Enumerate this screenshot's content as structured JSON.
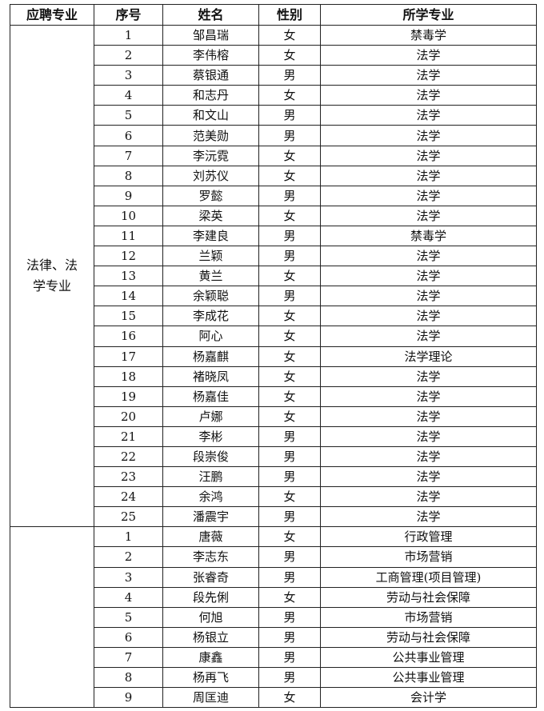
{
  "headers": [
    "应聘专业",
    "序号",
    "姓名",
    "性别",
    "所学专业"
  ],
  "groups": [
    {
      "position": "法律、法学专业",
      "rows": [
        [
          "1",
          "邹昌瑞",
          "女",
          "禁毒学"
        ],
        [
          "2",
          "李伟榕",
          "女",
          "法学"
        ],
        [
          "3",
          "蔡银通",
          "男",
          "法学"
        ],
        [
          "4",
          "和志丹",
          "女",
          "法学"
        ],
        [
          "5",
          "和文山",
          "男",
          "法学"
        ],
        [
          "6",
          "范美勋",
          "男",
          "法学"
        ],
        [
          "7",
          "李沅霓",
          "女",
          "法学"
        ],
        [
          "8",
          "刘苏仪",
          "女",
          "法学"
        ],
        [
          "9",
          "罗懿",
          "男",
          "法学"
        ],
        [
          "10",
          "梁英",
          "女",
          "法学"
        ],
        [
          "11",
          "李建良",
          "男",
          "禁毒学"
        ],
        [
          "12",
          "兰颖",
          "男",
          "法学"
        ],
        [
          "13",
          "黄兰",
          "女",
          "法学"
        ],
        [
          "14",
          "余颖聪",
          "男",
          "法学"
        ],
        [
          "15",
          "李成花",
          "女",
          "法学"
        ],
        [
          "16",
          "阿心",
          "女",
          "法学"
        ],
        [
          "17",
          "杨嘉麒",
          "女",
          "法学理论"
        ],
        [
          "18",
          "褚晓凤",
          "女",
          "法学"
        ],
        [
          "19",
          "杨嘉佳",
          "女",
          "法学"
        ],
        [
          "20",
          "卢娜",
          "女",
          "法学"
        ],
        [
          "21",
          "李彬",
          "男",
          "法学"
        ],
        [
          "22",
          "段崇俊",
          "男",
          "法学"
        ],
        [
          "23",
          "汪鹏",
          "男",
          "法学"
        ],
        [
          "24",
          "余鸿",
          "女",
          "法学"
        ],
        [
          "25",
          "潘震宇",
          "男",
          "法学"
        ]
      ]
    },
    {
      "position": "",
      "rows": [
        [
          "1",
          "唐薇",
          "女",
          "行政管理"
        ],
        [
          "2",
          "李志东",
          "男",
          "市场营销"
        ],
        [
          "3",
          "张睿奇",
          "男",
          "工商管理(项目管理)"
        ],
        [
          "4",
          "段先俐",
          "女",
          "劳动与社会保障"
        ],
        [
          "5",
          "何旭",
          "男",
          "市场营销"
        ],
        [
          "6",
          "杨银立",
          "男",
          "劳动与社会保障"
        ],
        [
          "7",
          "康鑫",
          "男",
          "公共事业管理"
        ],
        [
          "8",
          "杨再飞",
          "男",
          "公共事业管理"
        ],
        [
          "9",
          "周匡迪",
          "女",
          "会计学"
        ]
      ]
    }
  ]
}
